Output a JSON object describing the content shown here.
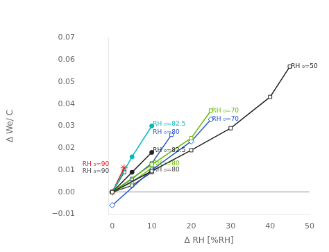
{
  "chart_data": {
    "type": "line",
    "xlabel": "Δ RH [%RH]",
    "ylabel": "Δ We/ C",
    "xlim": [
      -1,
      50
    ],
    "ylim": [
      -0.01,
      0.07
    ],
    "xticks": [
      0,
      10,
      20,
      30,
      40,
      50
    ],
    "yticks": [
      {
        "value": -0.01,
        "label": "−0.01"
      },
      {
        "value": 0,
        "label": "0.00"
      },
      0.01,
      0.02,
      0.03,
      0.04,
      0.05,
      0.06,
      0.07
    ],
    "grid": false,
    "series": [
      {
        "color": "#222222",
        "marker": "open_square",
        "x": [
          0,
          10,
          20,
          30,
          40,
          45
        ],
        "values": [
          0,
          0.0095,
          0.019,
          0.029,
          0.0432,
          0.057
        ]
      },
      {
        "color": "#66bb00",
        "marker": "open_square",
        "x": [
          0,
          10,
          20,
          25
        ],
        "values": [
          0,
          0.0125,
          0.0245,
          0.037
        ]
      },
      {
        "color": "#2255cc",
        "marker": "open_diamond",
        "x": [
          0,
          10,
          20,
          25
        ],
        "values": [
          -0.006,
          0.01,
          0.023,
          0.033
        ]
      },
      {
        "color": "#00bbbb",
        "marker": "circle",
        "x": [
          0,
          5,
          10
        ],
        "values": [
          0,
          0.016,
          0.03
        ]
      },
      {
        "color": "#222222",
        "marker": "circle",
        "x": [
          0,
          5,
          10
        ],
        "values": [
          0,
          0.009,
          0.018
        ]
      },
      {
        "color": "#2255cc",
        "marker": "open_square",
        "x": [
          0,
          5,
          10,
          15
        ],
        "values": [
          0,
          0.006,
          0.013,
          0.026
        ]
      },
      {
        "color": "#66bb00",
        "marker": "open_square",
        "x": [
          0,
          5,
          10
        ],
        "values": [
          0,
          0.0045,
          0.011
        ]
      },
      {
        "color": "#444444",
        "marker": "open_square",
        "x": [
          0,
          5,
          10
        ],
        "values": [
          0,
          0.003,
          0.009
        ]
      },
      {
        "color": "#ee1111",
        "marker": "star",
        "x": [
          0,
          3
        ],
        "values": [
          0,
          0.011
        ]
      },
      {
        "color": "#444444",
        "marker": "open_square",
        "x": [
          0,
          3
        ],
        "values": [
          0,
          0.009
        ]
      }
    ],
    "annotations": [
      {
        "x": 45.3,
        "y": 0.057,
        "text": "RH ₀=50",
        "color": "#222222",
        "align": "left"
      },
      {
        "x": 25.3,
        "y": 0.037,
        "text": "RH ₀=70",
        "color": "#66bb00",
        "align": "left"
      },
      {
        "x": 25.3,
        "y": 0.033,
        "text": "RH ₀=70",
        "color": "#2255cc",
        "align": "left"
      },
      {
        "x": 10.3,
        "y": 0.031,
        "text": "RH ₀=82.5",
        "color": "#00bbbb",
        "align": "left"
      },
      {
        "x": 10.3,
        "y": 0.019,
        "text": "RH ₀=82.5",
        "color": "#222222",
        "align": "left"
      },
      {
        "x": 10.3,
        "y": 0.027,
        "text": "RH ₀=80",
        "color": "#2255cc",
        "align": "left"
      },
      {
        "x": 10.3,
        "y": 0.013,
        "text": "RH ₀=80",
        "color": "#66bb00",
        "align": "left"
      },
      {
        "x": 10.3,
        "y": 0.01,
        "text": "RH ₀=80",
        "color": "#444444",
        "align": "left"
      },
      {
        "x": -0.8,
        "y": 0.0125,
        "text": "RH ₀=90",
        "color": "#ee1111",
        "align": "right"
      },
      {
        "x": -0.8,
        "y": 0.0095,
        "text": "RH ₀=90",
        "color": "#444444",
        "align": "right"
      }
    ]
  }
}
